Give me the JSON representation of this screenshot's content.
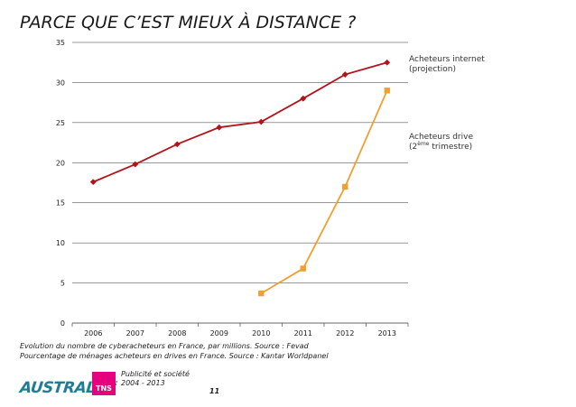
{
  "page": {
    "title": "PARCE QUE C’EST MIEUX À DISTANCE ?",
    "caption_line1": "Evolution du nombre de cyberacheteurs en France, par millions. Source : Fevad",
    "caption_line2": "Pourcentage de ménages acheteurs en drives en France. Source : Kantar Worldpanel",
    "footer_logo": "AUSTRALIE",
    "footer_logo_mark": "°:",
    "footer_badge": "TNS",
    "footer_sub_line1": "Publicité et société",
    "footer_sub_line2": "2004 - 2013",
    "page_number": "11"
  },
  "labels": {
    "internet_line1": "Acheteurs internet",
    "internet_line2": "(projection)",
    "drive_pre": "Acheteurs drive",
    "drive_open": "(2",
    "drive_sup": "ème",
    "drive_rest": " trimestre)"
  },
  "colors": {
    "internet": "#b5121b",
    "drive": "#f0a030",
    "grid": "#333333"
  },
  "chart_data": {
    "type": "line",
    "categories": [
      "2006",
      "2007",
      "2008",
      "2009",
      "2010",
      "2011",
      "2012",
      "2013"
    ],
    "series": [
      {
        "name": "Acheteurs internet (projection)",
        "marker": "diamond",
        "values": [
          17.6,
          19.8,
          22.3,
          24.4,
          25.1,
          28.0,
          31.0,
          32.5
        ]
      },
      {
        "name": "Acheteurs drive (2ème trimestre)",
        "marker": "square",
        "values": [
          null,
          null,
          null,
          null,
          3.7,
          6.8,
          17.0,
          29.0
        ]
      }
    ],
    "title": "",
    "xlabel": "",
    "ylabel": "",
    "ylim": [
      0,
      35
    ],
    "yticks": [
      0,
      5,
      10,
      15,
      20,
      25,
      30,
      35
    ],
    "grid": "horizontal",
    "legend": "right"
  }
}
